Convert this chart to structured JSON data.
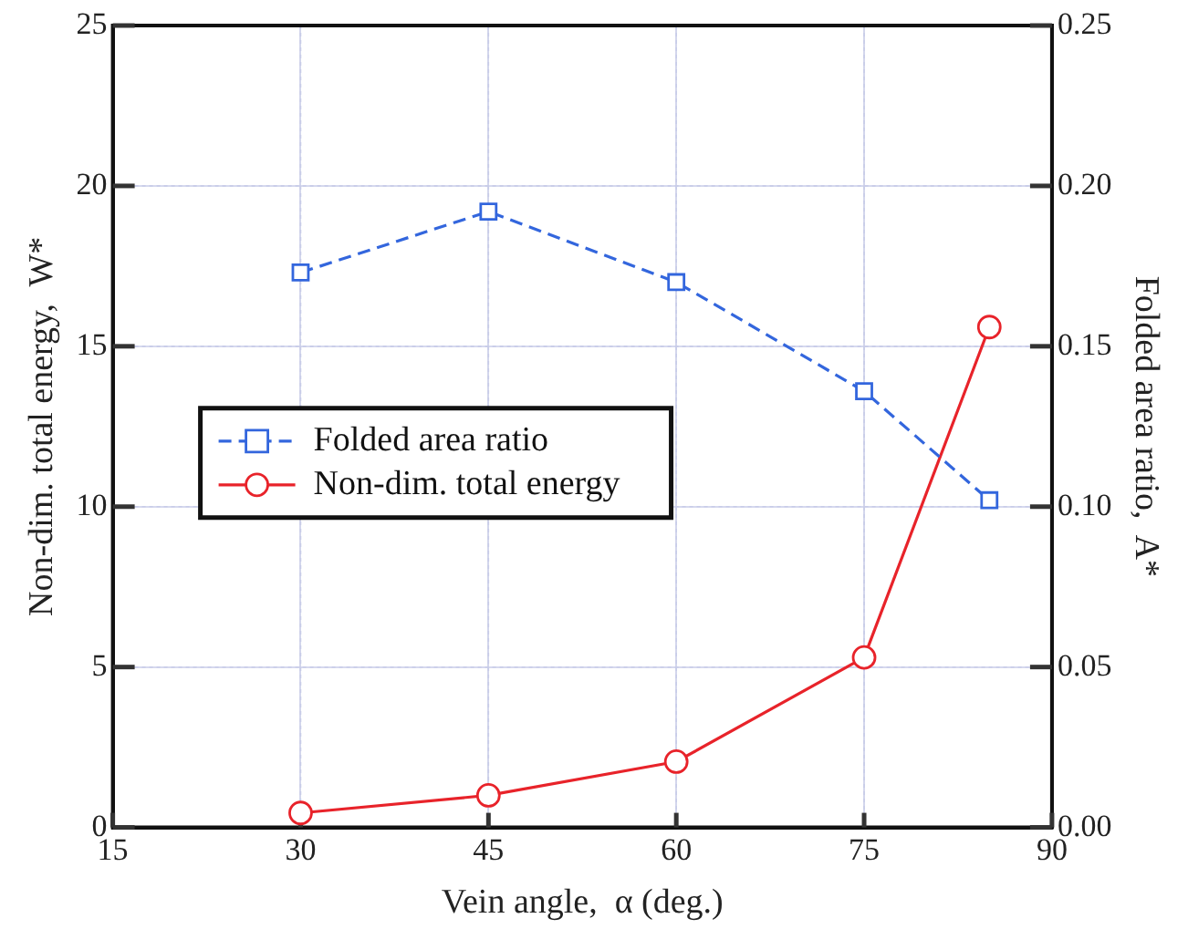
{
  "chart_data": {
    "type": "line",
    "xlabel": "Vein angle,  α (deg.)",
    "ylabel": "Non-dim. total energy,  W*",
    "y2label": "Folded area ratio,  A*",
    "x": [
      30,
      45,
      60,
      75,
      85
    ],
    "series": [
      {
        "name": "Folded area ratio",
        "color": "#3366dd",
        "axis": "y2",
        "marker": "square",
        "line_style": "dashed",
        "values": [
          0.173,
          0.192,
          0.17,
          0.136,
          0.102
        ]
      },
      {
        "name": "Non-dim. total energy",
        "color": "#e8232a",
        "axis": "y",
        "marker": "circle",
        "line_style": "solid",
        "values": [
          0.45,
          1.0,
          2.05,
          5.3,
          15.6
        ]
      }
    ],
    "xlim": [
      15,
      90
    ],
    "xticks": [
      15,
      30,
      45,
      60,
      75,
      90
    ],
    "ylim": [
      0,
      25
    ],
    "yticks": [
      0,
      5,
      10,
      15,
      20,
      25
    ],
    "y2lim": [
      0,
      0.25
    ],
    "y2ticks": [
      {
        "value": 0,
        "label": "0.00"
      },
      {
        "value": 0.05,
        "label": "0.05"
      },
      {
        "value": 0.1,
        "label": "0.10"
      },
      {
        "value": 0.15,
        "label": "0.15"
      },
      {
        "value": 0.2,
        "label": "0.20"
      },
      {
        "value": 0.25,
        "label": "0.25"
      }
    ],
    "grid": true,
    "legend": "center left"
  }
}
